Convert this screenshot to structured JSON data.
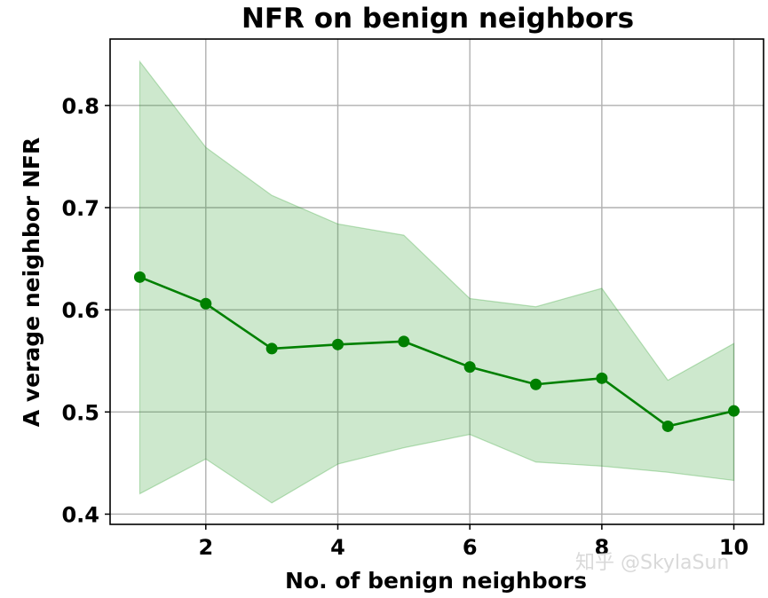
{
  "chart_data": {
    "type": "line",
    "title": "NFR on benign neighbors",
    "xlabel": "No. of benign neighbors",
    "ylabel": "A verage neighbor NFR",
    "xlim": [
      0.55,
      10.45
    ],
    "ylim": [
      0.39,
      0.865
    ],
    "xticks": [
      2,
      4,
      6,
      8,
      10
    ],
    "yticks": [
      0.4,
      0.5,
      0.6,
      0.7,
      0.8
    ],
    "ytick_labels": [
      "0.4",
      "0.5",
      "0.6",
      "0.7",
      "0.8"
    ],
    "grid": true,
    "series": [
      {
        "name": "mean",
        "color": "#008000",
        "x": [
          1,
          2,
          3,
          4,
          5,
          6,
          7,
          8,
          9,
          10
        ],
        "values": [
          0.632,
          0.606,
          0.562,
          0.566,
          0.569,
          0.544,
          0.527,
          0.533,
          0.486,
          0.501
        ],
        "upper": [
          0.843,
          0.759,
          0.712,
          0.684,
          0.673,
          0.611,
          0.603,
          0.621,
          0.531,
          0.567
        ],
        "lower": [
          0.42,
          0.454,
          0.411,
          0.449,
          0.465,
          0.478,
          0.451,
          0.447,
          0.441,
          0.433
        ],
        "band_color": "#2ca02c"
      }
    ]
  },
  "watermark": "知乎 @SkylaSun"
}
